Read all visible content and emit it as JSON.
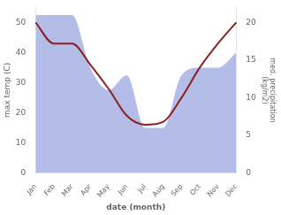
{
  "chart_data": {
    "type": "line",
    "xlabel": "date (month)",
    "ylabel": "max temp (C)",
    "y2label": "med. precipitation\n(kg/m2)",
    "categories": [
      "Jan",
      "Feb",
      "Mar",
      "Apr",
      "May",
      "Jun",
      "Jul",
      "Aug",
      "Sep",
      "Oct",
      "Nov",
      "Dec"
    ],
    "series": [
      {
        "type": "area",
        "color": "#b3bde8",
        "axis": "y2",
        "values": [
          21,
          21,
          21,
          14,
          11,
          13,
          6,
          6,
          13,
          14,
          14,
          16
        ]
      },
      {
        "type": "line",
        "color": "#8b2020",
        "values": [
          50,
          43,
          43,
          36,
          28,
          19,
          16,
          17,
          25,
          35,
          43,
          50
        ]
      }
    ],
    "ylim": [
      0,
      55
    ],
    "yticks": [
      0,
      10,
      20,
      30,
      40,
      50
    ],
    "y2lim": [
      0,
      22
    ],
    "y2ticks": [
      0,
      5,
      10,
      15,
      20
    ],
    "grid": false
  }
}
